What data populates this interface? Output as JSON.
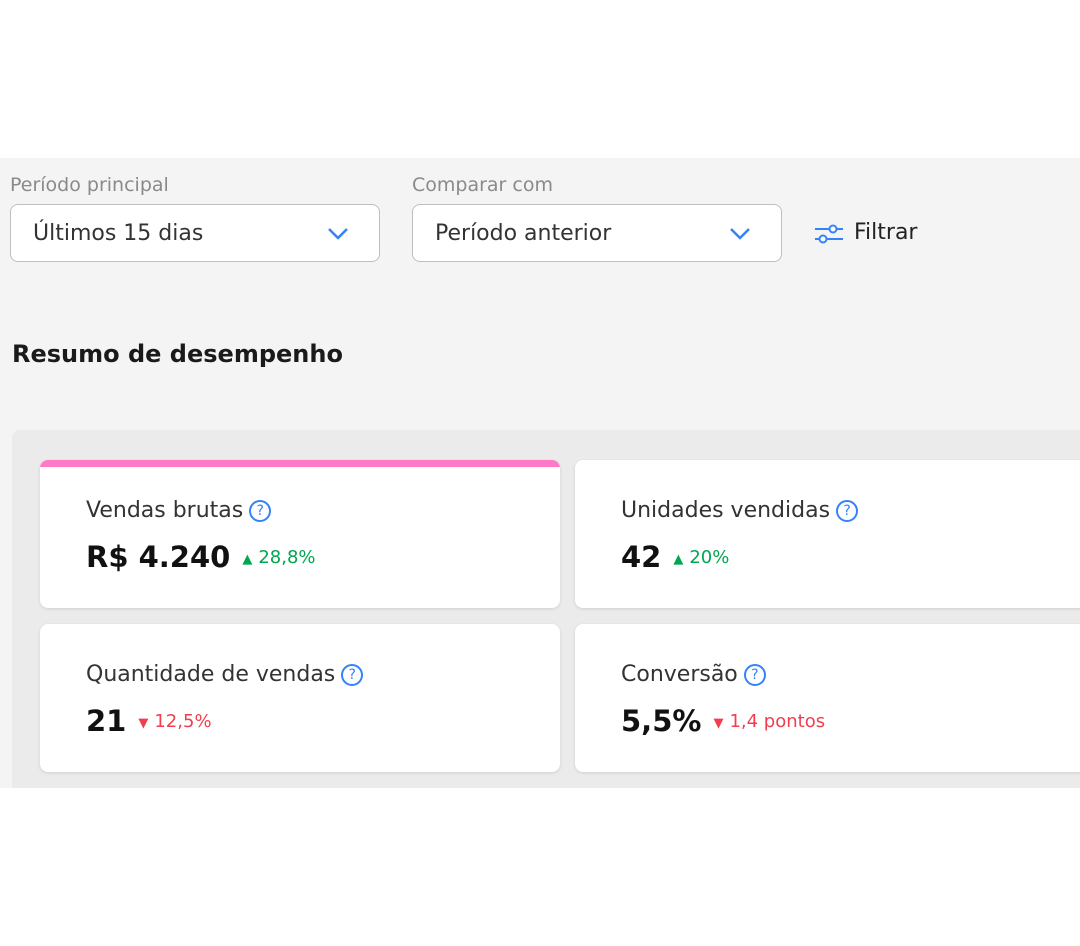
{
  "filters": {
    "primary": {
      "label": "Período principal",
      "value": "Últimos 15 dias"
    },
    "compare": {
      "label": "Comparar com",
      "value": "Período anterior"
    },
    "filter_button": "Filtrar"
  },
  "section_title": "Resumo de desempenho",
  "cards": [
    {
      "title": "Vendas brutas",
      "value": "R$ 4.240",
      "change": "28,8%",
      "direction": "up"
    },
    {
      "title": "Unidades vendidas",
      "value": "42",
      "change": "20%",
      "direction": "up"
    },
    {
      "title": "Quantidade de vendas",
      "value": "21",
      "change": "12,5%",
      "direction": "down"
    },
    {
      "title": "Conversão",
      "value": "5,5%",
      "change": "1,4 pontos",
      "direction": "down"
    }
  ]
}
